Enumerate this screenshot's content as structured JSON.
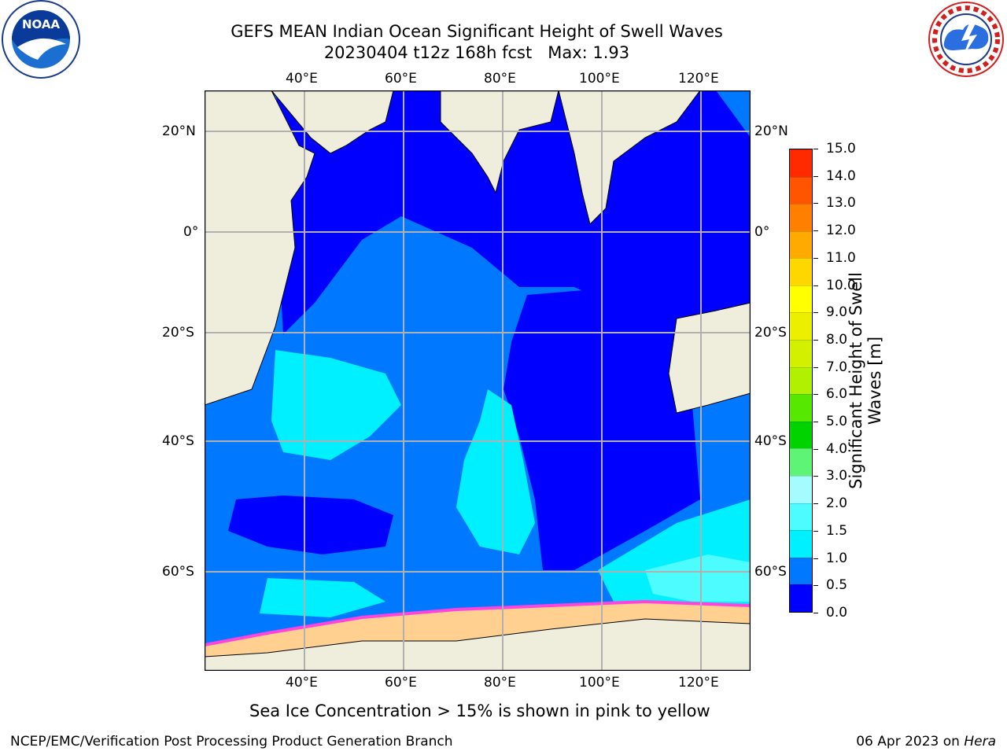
{
  "header": {
    "title_line1": "GEFS MEAN Indian Ocean Significant Height of Swell Waves",
    "title_line2": "20230404 t12z 168h fcst   Max: 1.93"
  },
  "logos": {
    "left": {
      "name": "noaa-logo",
      "text": "NOAA"
    },
    "right": {
      "name": "nws-logo",
      "text": "NATIONAL WEATHER SERVICE"
    }
  },
  "map": {
    "lon_labels": [
      "40°E",
      "60°E",
      "80°E",
      "100°E",
      "120°E"
    ],
    "lat_labels": [
      "20°N",
      "0°",
      "20°S",
      "40°S",
      "60°S"
    ],
    "grid": true,
    "colors": {
      "land": "#efeedd",
      "coast": "#000000",
      "gridline": "#b0b0b0"
    }
  },
  "colorbar": {
    "label_line1": "Significant Height of Swell",
    "label_line2": "Waves [m]",
    "ticks": [
      "0.0",
      "0.5",
      "1.0",
      "1.5",
      "2.0",
      "3.0",
      "4.0",
      "5.0",
      "6.0",
      "7.0",
      "8.0",
      "9.0",
      "10.0",
      "11.0",
      "12.0",
      "13.0",
      "14.0",
      "15.0"
    ],
    "colors": [
      "#0000ff",
      "#0078ff",
      "#00f0ff",
      "#4cfcff",
      "#a4fcff",
      "#5ef577",
      "#00d300",
      "#56e800",
      "#b0f000",
      "#d2f000",
      "#ecf000",
      "#ffff00",
      "#ffd700",
      "#ffaa00",
      "#ff7f00",
      "#ff5500",
      "#ff2a00",
      "#ff0000"
    ]
  },
  "footer": {
    "note": "Sea Ice Concentration > 15% is shown in pink to yellow",
    "credit": "NCEP/EMC/Verification Post Processing Product Generation Branch",
    "date": "06 Apr 2023 on",
    "machine": "Hera"
  }
}
